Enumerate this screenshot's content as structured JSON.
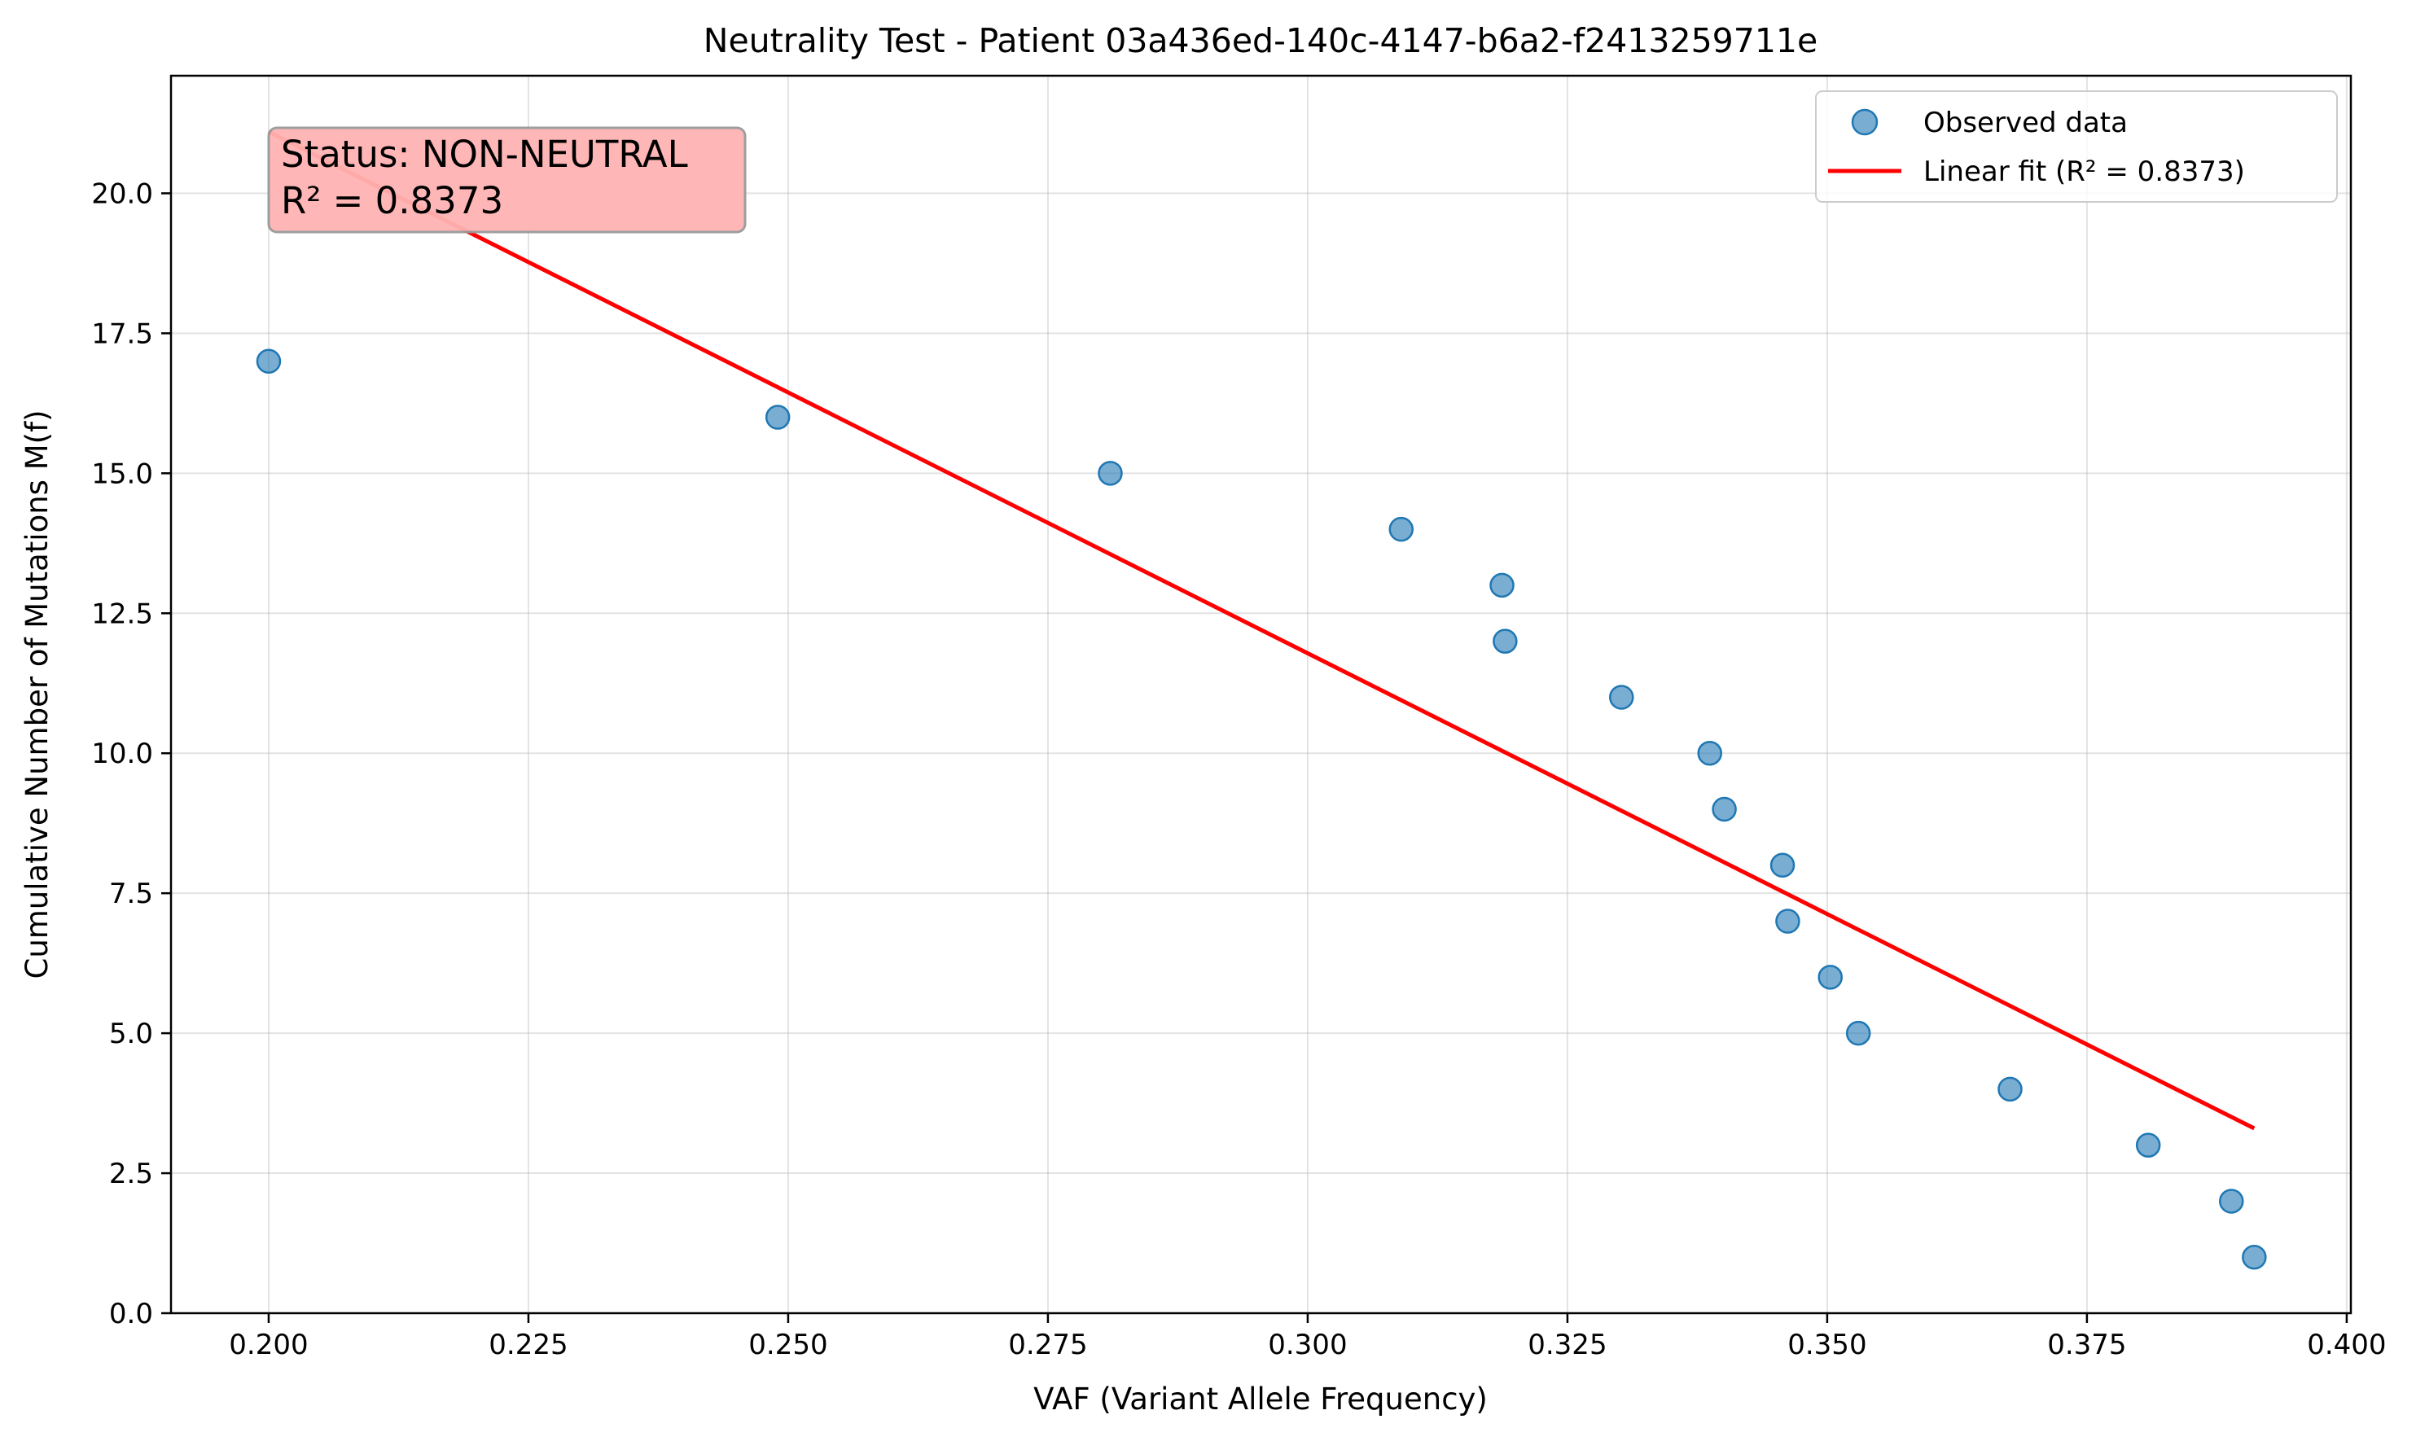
{
  "chart_data": {
    "type": "scatter",
    "title": "Neutrality Test - Patient 03a436ed-140c-4147-b6a2-f2413259711e",
    "xlabel": "VAF (Variant Allele Frequency)",
    "ylabel": "Cumulative Number of Mutations M(f)",
    "xlim": [
      0.1906,
      0.4004
    ],
    "ylim": [
      0,
      22.1
    ],
    "xticks": [
      0.2,
      0.225,
      0.25,
      0.275,
      0.3,
      0.325,
      0.35,
      0.375,
      0.4
    ],
    "xtick_labels": [
      "0.200",
      "0.225",
      "0.250",
      "0.275",
      "0.300",
      "0.325",
      "0.350",
      "0.375",
      "0.400"
    ],
    "yticks": [
      0.0,
      2.5,
      5.0,
      7.5,
      10.0,
      12.5,
      15.0,
      17.5,
      20.0
    ],
    "ytick_labels": [
      "0.0",
      "2.5",
      "5.0",
      "7.5",
      "10.0",
      "12.5",
      "15.0",
      "17.5",
      "20.0"
    ],
    "grid": true,
    "legend_position": "top-right",
    "series": [
      {
        "name": "Observed data",
        "kind": "scatter",
        "color": "#1f77b4",
        "points": [
          {
            "x": 0.2,
            "y": 17
          },
          {
            "x": 0.249,
            "y": 16
          },
          {
            "x": 0.281,
            "y": 15
          },
          {
            "x": 0.309,
            "y": 14
          },
          {
            "x": 0.3187,
            "y": 13
          },
          {
            "x": 0.319,
            "y": 12
          },
          {
            "x": 0.3302,
            "y": 11
          },
          {
            "x": 0.3387,
            "y": 10
          },
          {
            "x": 0.3401,
            "y": 9
          },
          {
            "x": 0.3457,
            "y": 8
          },
          {
            "x": 0.3462,
            "y": 7
          },
          {
            "x": 0.3503,
            "y": 6
          },
          {
            "x": 0.353,
            "y": 5
          },
          {
            "x": 0.3676,
            "y": 4
          },
          {
            "x": 0.3809,
            "y": 3
          },
          {
            "x": 0.3889,
            "y": 2
          },
          {
            "x": 0.3911,
            "y": 1
          }
        ]
      },
      {
        "name": "Linear fit (R² = 0.8373)",
        "kind": "line",
        "color": "#ff0000",
        "points": [
          {
            "x": 0.2,
            "y": 21.1
          },
          {
            "x": 0.3911,
            "y": 3.3
          }
        ]
      }
    ],
    "annotation": {
      "lines": [
        "Status: NON-NEUTRAL",
        "R² = 0.8373"
      ],
      "background": "#ffb3b3",
      "position": "top-left"
    }
  }
}
